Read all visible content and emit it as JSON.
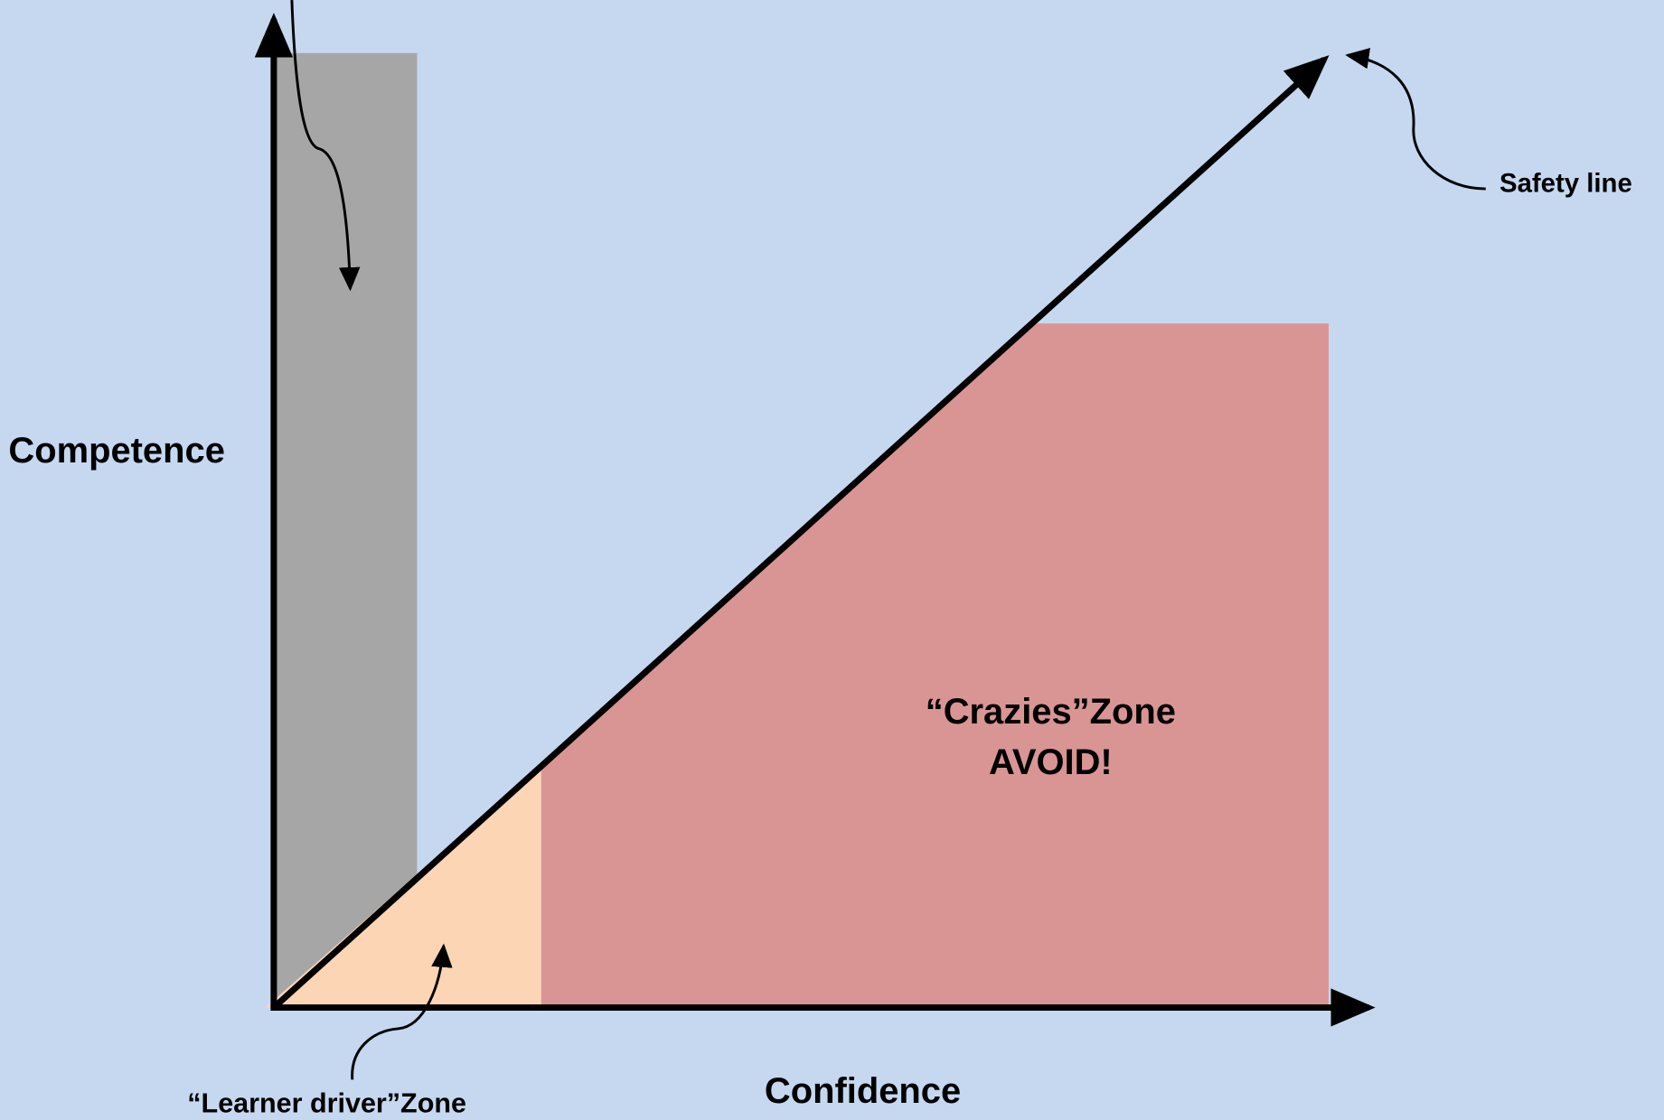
{
  "labels": {
    "y_axis": "Competence",
    "x_axis": "Confidence",
    "safety_line": "Safety line",
    "crazies_zone": [
      "“Crazies”Zone",
      "AVOID!"
    ],
    "learner_zone": "“Learner driver”Zone"
  }
}
